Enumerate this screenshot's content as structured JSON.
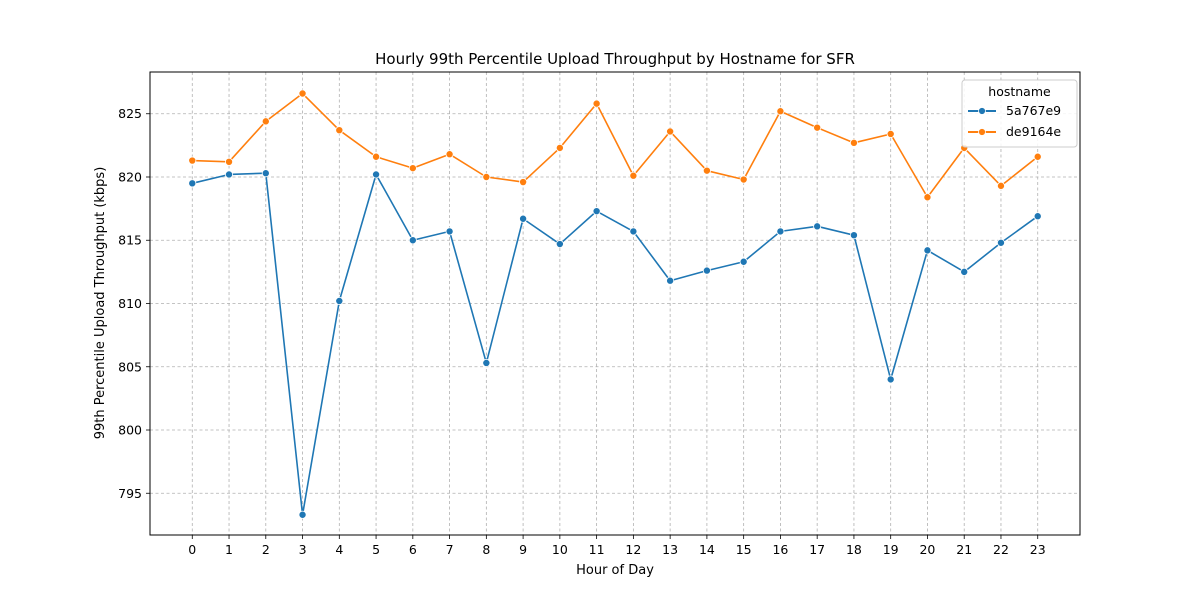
{
  "chart_data": {
    "type": "line",
    "title": "Hourly 99th Percentile Upload Throughput by Hostname for SFR",
    "xlabel": "Hour of Day",
    "ylabel": "99th Percentile Upload Throughput (kbps)",
    "x": [
      0,
      1,
      2,
      3,
      4,
      5,
      6,
      7,
      8,
      9,
      10,
      11,
      12,
      13,
      14,
      15,
      16,
      17,
      18,
      19,
      20,
      21,
      22,
      23
    ],
    "xlim": [
      -1.15,
      24.15
    ],
    "ylim": [
      791.7,
      828.3
    ],
    "yticks": [
      795,
      800,
      805,
      810,
      815,
      820,
      825
    ],
    "grid": true,
    "legend": {
      "title": "hostname",
      "position": "top-right"
    },
    "series": [
      {
        "name": "5a767e9",
        "color": "#1f77b4",
        "values": [
          819.5,
          820.2,
          820.3,
          793.3,
          810.2,
          820.2,
          815.0,
          815.7,
          805.3,
          816.7,
          814.7,
          817.3,
          815.7,
          811.8,
          812.6,
          813.3,
          815.7,
          816.1,
          815.4,
          804.0,
          814.2,
          812.5,
          814.8,
          816.9
        ]
      },
      {
        "name": "de9164e",
        "color": "#ff7f0e",
        "values": [
          821.3,
          821.2,
          824.4,
          826.6,
          823.7,
          821.6,
          820.7,
          821.8,
          820.0,
          819.6,
          822.3,
          825.8,
          820.1,
          823.6,
          820.5,
          819.8,
          825.2,
          823.9,
          822.7,
          823.4,
          818.4,
          822.3,
          819.3,
          821.6
        ]
      }
    ]
  }
}
